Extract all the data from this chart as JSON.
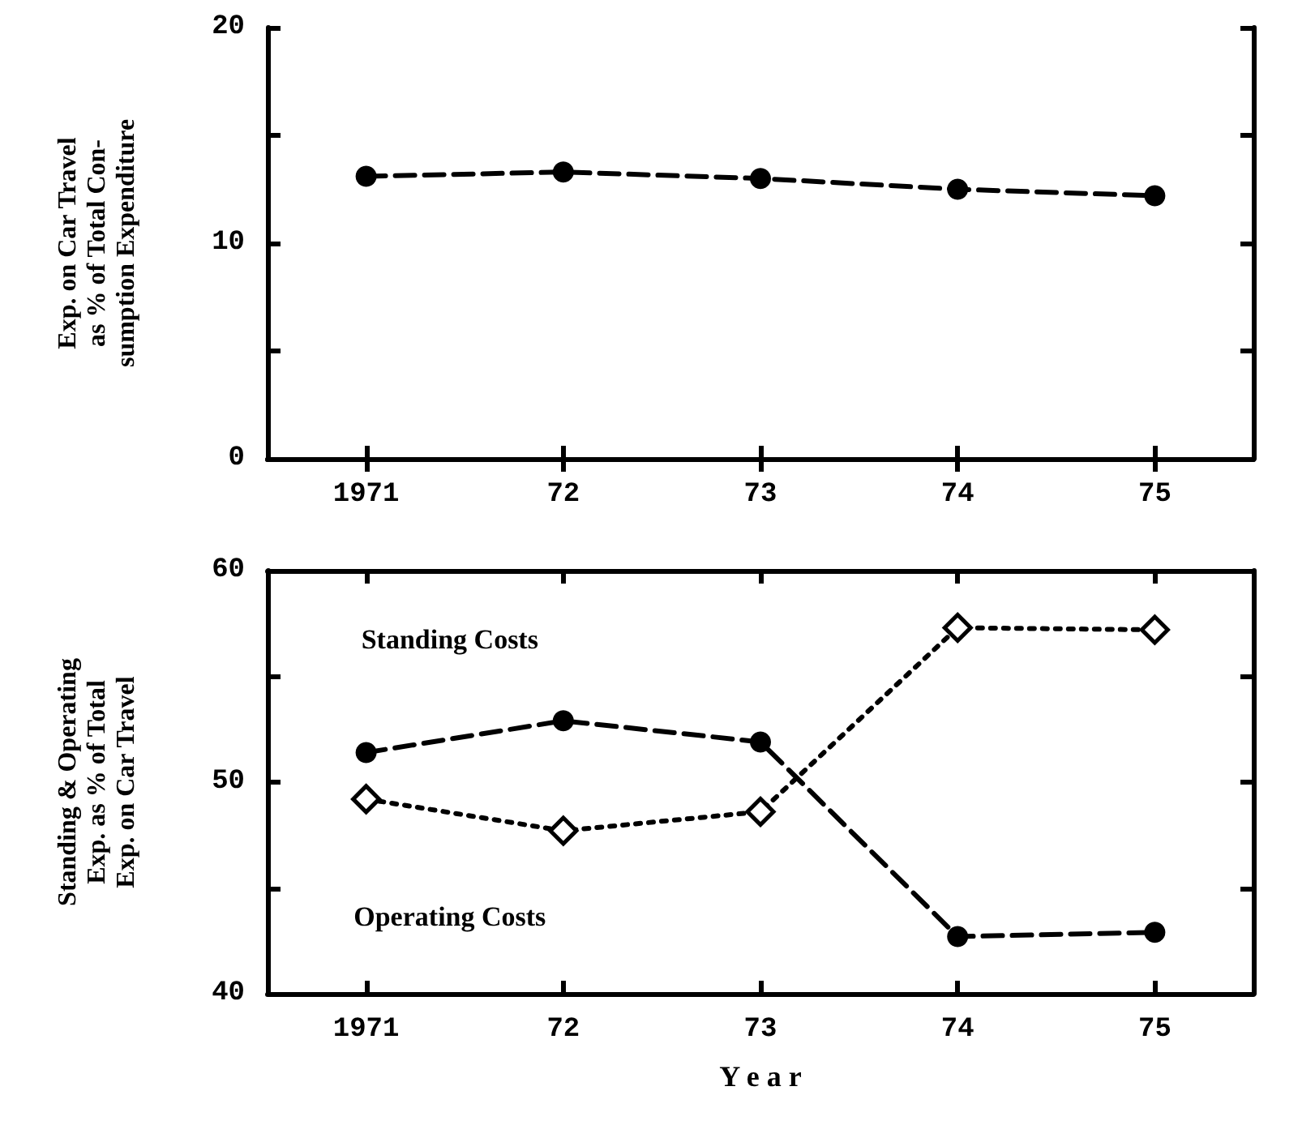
{
  "chart_data": [
    {
      "type": "line",
      "ylabel": "Exp. on Car Travel\nas % of Total Con-\nsumption Expenditure",
      "categories": [
        "1971",
        "72",
        "73",
        "74",
        "75"
      ],
      "series": [
        {
          "color": "#000000",
          "values": [
            13.1,
            13.3,
            13.0,
            12.5,
            12.2
          ],
          "marker": "circle",
          "line_style": "dashed"
        }
      ],
      "ylim": [
        0,
        20
      ],
      "yticks": [
        0,
        {
          "value": 5,
          "label": null
        },
        10,
        {
          "value": 15,
          "label": null
        },
        20
      ],
      "grid": false,
      "legend": false
    },
    {
      "type": "line",
      "xlabel": "Y e a r",
      "ylabel": "Standing & Operating\nExp. as % of Total\nExp. on Car Travel",
      "categories": [
        "1971",
        "72",
        "73",
        "74",
        "75"
      ],
      "series": [
        {
          "name": "Standing Costs",
          "color": "#000000",
          "values": [
            51.4,
            52.9,
            51.9,
            42.7,
            42.9
          ],
          "marker": "circle",
          "line_style": "dashed"
        },
        {
          "name": "Operating Costs",
          "color": "#000000",
          "values": [
            49.2,
            47.7,
            48.6,
            57.3,
            57.2
          ],
          "marker": "diamond",
          "line_style": "dotted"
        }
      ],
      "ylim": [
        40,
        60
      ],
      "yticks": [
        40,
        {
          "value": 45,
          "label": null
        },
        50,
        {
          "value": 55,
          "label": null
        },
        60
      ],
      "grid": false,
      "legend": false
    }
  ]
}
